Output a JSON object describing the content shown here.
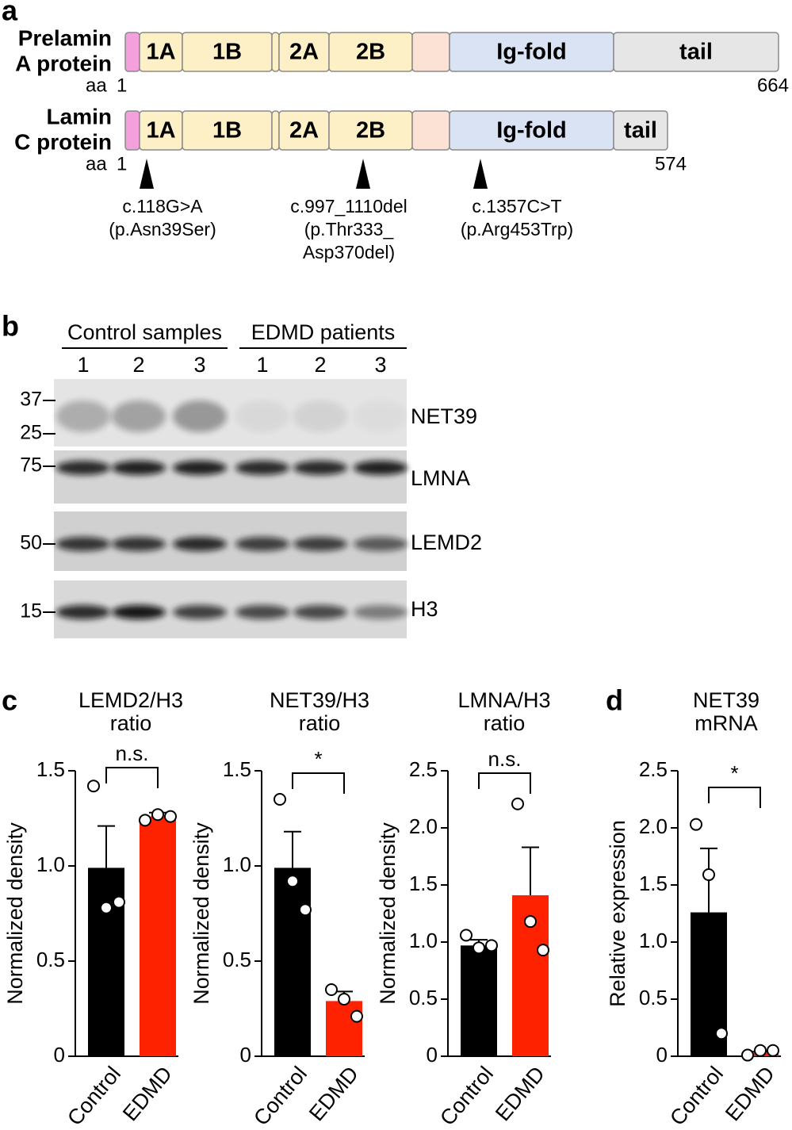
{
  "panel_a": {
    "label": "a",
    "proteins": [
      {
        "name": [
          "Prelamin",
          "A protein"
        ],
        "domains": [
          "1A",
          "1B",
          "2A",
          "2B",
          "Ig-fold",
          "tail"
        ],
        "aa_prefix": "aa",
        "start": 1,
        "end": 664
      },
      {
        "name": [
          "Lamin",
          "C protein"
        ],
        "domains": [
          "1A",
          "1B",
          "2A",
          "2B",
          "Ig-fold",
          "tail"
        ],
        "aa_prefix": "aa",
        "start": 1,
        "end": 574
      }
    ],
    "mutations": [
      [
        "c.118G>A",
        "(p.Asn39Ser)"
      ],
      [
        "c.997_1110del",
        "(p.Thr333_",
        "Asp370del)"
      ],
      [
        "c.1357C>T",
        "(p.Arg453Trp)"
      ]
    ]
  },
  "panel_b": {
    "label": "b",
    "groups": [
      "Control samples",
      "EDMD patients"
    ],
    "lanes": [
      1,
      2,
      3,
      1,
      2,
      3
    ],
    "blots": [
      {
        "name": "NET39",
        "markers": [
          37,
          25
        ]
      },
      {
        "name": "LMNA",
        "markers": [
          75
        ]
      },
      {
        "name": "LEMD2",
        "markers": [
          50
        ]
      },
      {
        "name": "H3",
        "markers": [
          15
        ]
      }
    ]
  },
  "panel_c": {
    "label": "c"
  },
  "panel_d": {
    "label": "d"
  },
  "chart_data": [
    {
      "type": "bar",
      "title": [
        "LEMD2/H3",
        "ratio"
      ],
      "y_label": "Normalized density",
      "categories": [
        "Control",
        "EDMD"
      ],
      "values": [
        0.99,
        1.26
      ],
      "errors": [
        0.22,
        0.02
      ],
      "points": [
        [
          1.42,
          0.78,
          0.81
        ],
        [
          1.24,
          1.27,
          1.26
        ]
      ],
      "colors": [
        "#000000",
        "#ff2200"
      ],
      "ylim": [
        0,
        1.5
      ],
      "yticks": [
        0,
        0.5,
        {
          "value": 1,
          "label": "1.0"
        },
        1.5
      ],
      "significance": "n.s."
    },
    {
      "type": "bar",
      "title": [
        "NET39/H3",
        "ratio"
      ],
      "y_label": "Normalized density",
      "categories": [
        "Control",
        "EDMD"
      ],
      "values": [
        0.99,
        0.29
      ],
      "errors": [
        0.19,
        0.05
      ],
      "points": [
        [
          1.35,
          0.92,
          0.77
        ],
        [
          0.35,
          0.3,
          0.21
        ]
      ],
      "colors": [
        "#000000",
        "#ff2200"
      ],
      "ylim": [
        0,
        1.5
      ],
      "yticks": [
        0,
        0.5,
        {
          "value": 1,
          "label": "1.0"
        },
        1.5
      ],
      "significance": "*"
    },
    {
      "type": "bar",
      "title": [
        "LMNA/H3",
        "ratio"
      ],
      "y_label": "Normalized density",
      "categories": [
        "Control",
        "EDMD"
      ],
      "values": [
        0.97,
        1.41
      ],
      "errors": [
        0.05,
        0.42
      ],
      "points": [
        [
          1.06,
          0.95,
          0.97
        ],
        [
          2.21,
          1.18,
          0.93
        ]
      ],
      "colors": [
        "#000000",
        "#ff2200"
      ],
      "ylim": [
        0,
        2.5
      ],
      "yticks": [
        0,
        0.5,
        {
          "value": 1,
          "label": "1.0"
        },
        1.5,
        {
          "value": 2,
          "label": "2.0"
        },
        2.5
      ],
      "significance": "n.s."
    },
    {
      "type": "bar",
      "title": [
        "NET39",
        "mRNA"
      ],
      "y_label": "Relative expression",
      "categories": [
        "Control",
        "EDMD"
      ],
      "values": [
        1.26,
        0.03
      ],
      "errors": [
        0.56,
        0.01
      ],
      "points": [
        [
          2.03,
          1.59,
          0.2
        ],
        [
          0.01,
          0.05,
          0.05
        ]
      ],
      "colors": [
        "#000000",
        "#ff2200"
      ],
      "ylim": [
        0,
        2.5
      ],
      "yticks": [
        0,
        0.5,
        {
          "value": 1,
          "label": "1.0"
        },
        1.5,
        {
          "value": 2,
          "label": "2.0"
        },
        2.5
      ],
      "significance": "*"
    }
  ]
}
